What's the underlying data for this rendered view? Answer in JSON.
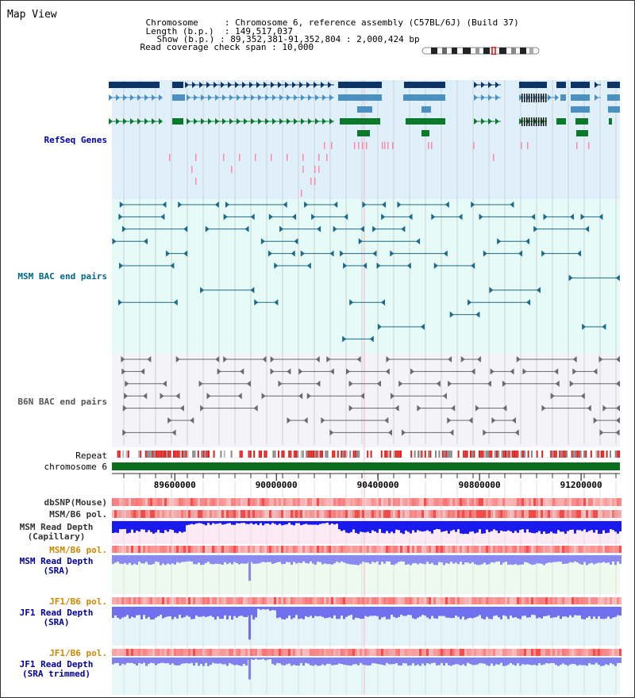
{
  "header": {
    "view_title": "Map View",
    "rows": [
      {
        "key": "Chromosome",
        "value": "Chromosome 6, reference assembly (C57BL/6J) (Build 37)"
      },
      {
        "key": "Length (b.p.)",
        "value": "149,517,037"
      },
      {
        "key": "Show (b.p.)",
        "value": "89,352,381-91,352,804 : 2,000,424 bp"
      },
      {
        "key": "Read coverage check span",
        "value": "10,000"
      }
    ]
  },
  "ruler": {
    "ticks": [
      {
        "pos": 89600000,
        "label": "89600000"
      },
      {
        "pos": 90000000,
        "label": "90000000"
      },
      {
        "pos": 90400000,
        "label": "90400000"
      },
      {
        "pos": 90800000,
        "label": "90800000"
      },
      {
        "pos": 91200000,
        "label": "91200000"
      }
    ],
    "start": 89352381,
    "end": 91352804
  },
  "tracks": {
    "refseq": {
      "label": "RefSeq Genes",
      "color": "#0000aa"
    },
    "msm_bac": {
      "label": "MSM BAC end pairs",
      "color": "#006688"
    },
    "b6n_bac": {
      "label": "B6N BAC end pairs",
      "color": "#555555"
    },
    "repeat": {
      "label": "Repeat"
    },
    "chromosome": {
      "label": "chromosome 6"
    },
    "dbsnp": {
      "label": "dbSNP(Mouse)"
    },
    "msm_b6_pol_1": {
      "label": "MSM/B6 pol."
    },
    "msm_depth_cap": {
      "label1": "MSM Read Depth",
      "label2": "(Capillary)"
    },
    "msm_b6_pol_2": {
      "label": "MSM/B6 pol."
    },
    "msm_depth_sra": {
      "label1": "MSM Read Depth",
      "label2": "(SRA)"
    },
    "jf1_b6_pol_1": {
      "label": "JF1/B6 pol."
    },
    "jf1_depth_sra": {
      "label1": "JF1 Read Depth",
      "label2": "(SRA)"
    },
    "jf1_b6_pol_2": {
      "label": "JF1/B6 pol."
    },
    "jf1_depth_trim": {
      "label1": "JF1 Read Depth",
      "label2": "(SRA trimmed)"
    }
  },
  "colors": {
    "gene_navy": "#0d3466",
    "gene_blue": "#4a90c0",
    "gene_green": "#0a7a2a",
    "snp_pink": "#ff88aa",
    "chromosome_bar": "#0a6e1e",
    "depth_blue": "#1a1aee",
    "depth_light_blue": "#8a8af0",
    "label_gray": "#333333",
    "label_orange": "#cc8800",
    "label_navy": "#000099"
  }
}
